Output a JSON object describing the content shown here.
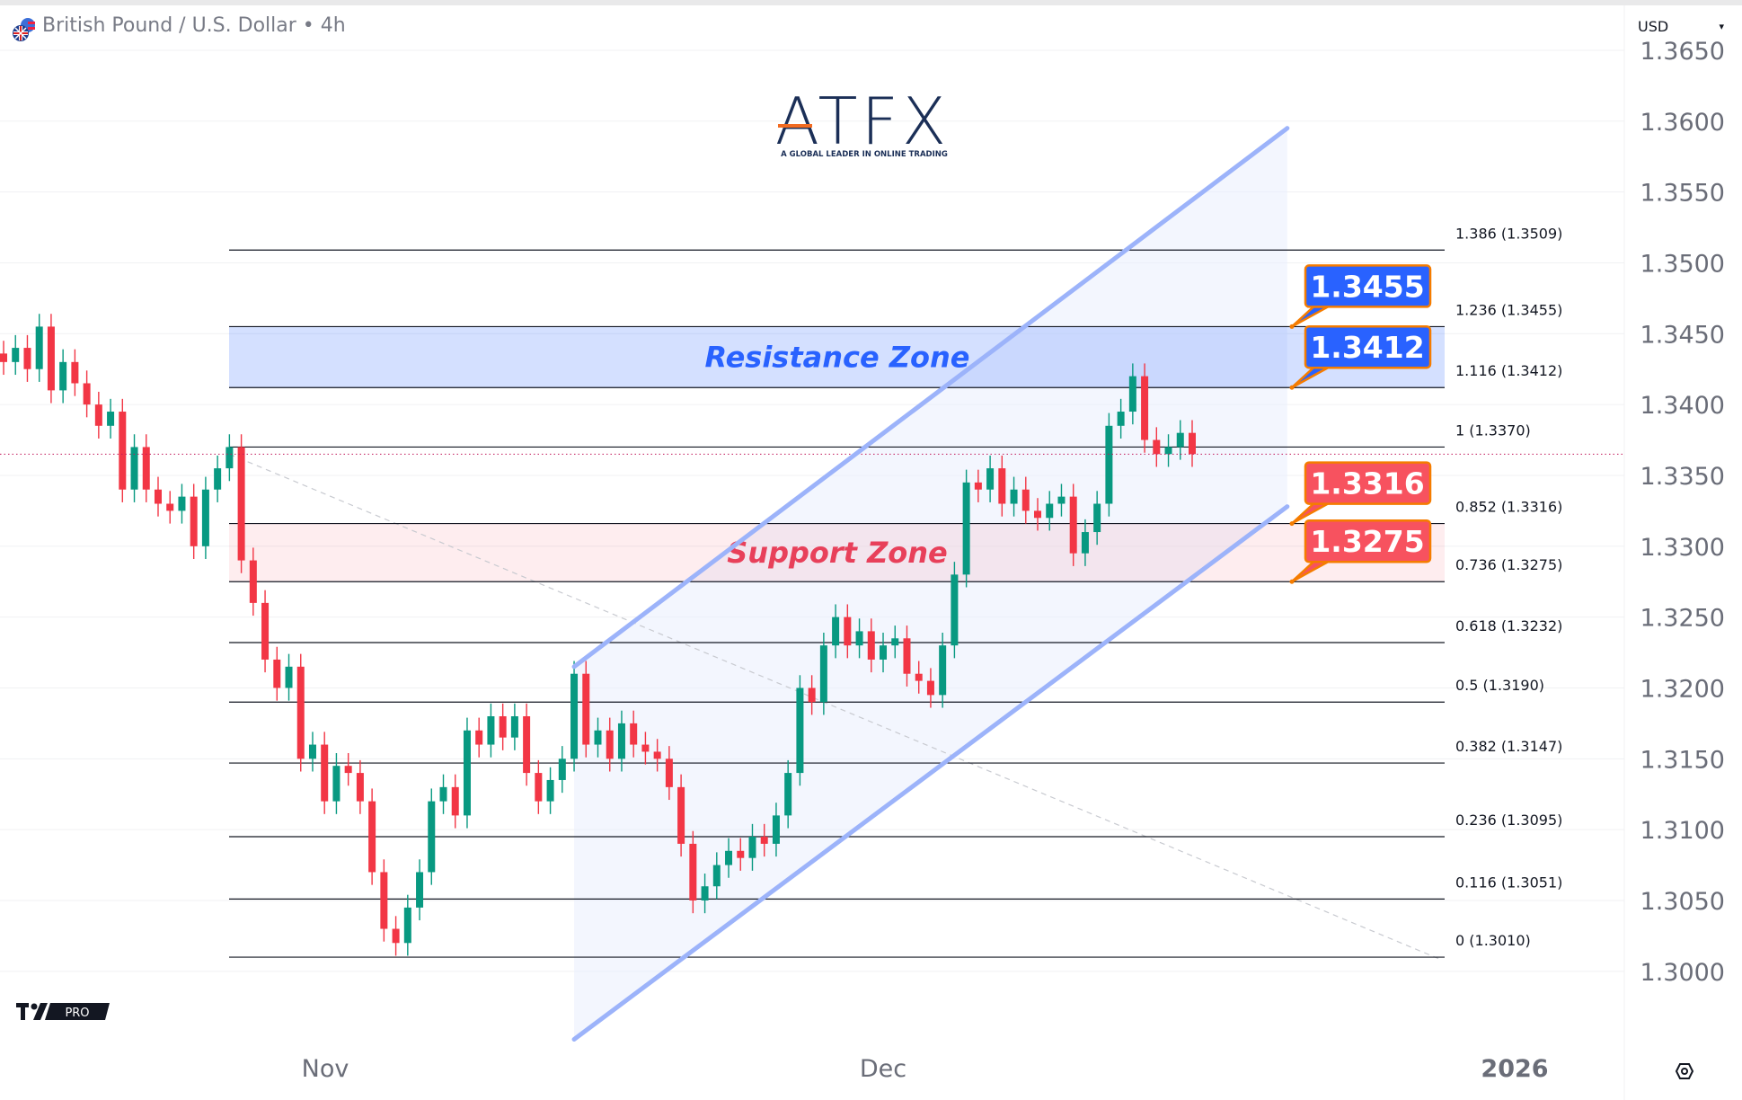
{
  "header": {
    "symbol_title": "British Pound / U.S. Dollar • 4h",
    "currency_select": "USD",
    "flag_icon": "gbp-usd-flags-icon"
  },
  "branding": {
    "logo_text": "ATFX",
    "logo_tagline": "A GLOBAL LEADER IN ONLINE TRADING",
    "tv_badge": "PRO"
  },
  "colors": {
    "up": "#089981",
    "down": "#f23645",
    "resistance": "#2962ff",
    "support": "#f7525f",
    "callout_border": "#f57c00",
    "channel": "#9cb3fa",
    "logo_navy": "#1b2f57",
    "logo_orange": "#f26b21"
  },
  "chart_data": {
    "type": "candlestick",
    "title": "",
    "ylim": [
      1.2985,
      1.3665
    ],
    "y_ticks": [
      "1.3650",
      "1.3600",
      "1.3550",
      "1.3500",
      "1.3450",
      "1.3400",
      "1.3350",
      "1.3300",
      "1.3250",
      "1.3200",
      "1.3150",
      "1.3100",
      "1.3050",
      "1.3000"
    ],
    "x_ticks": [
      "Nov",
      "Dec",
      "2026"
    ],
    "close": [
      1.343,
      1.344,
      1.3425,
      1.3455,
      1.341,
      1.343,
      1.3415,
      1.34,
      1.3385,
      1.3395,
      1.334,
      1.337,
      1.334,
      1.333,
      1.3325,
      1.3335,
      1.33,
      1.334,
      1.3355,
      1.337,
      1.329,
      1.326,
      1.322,
      1.32,
      1.3215,
      1.315,
      1.316,
      1.312,
      1.3145,
      1.314,
      1.312,
      1.307,
      1.303,
      1.302,
      1.3045,
      1.307,
      1.312,
      1.313,
      1.311,
      1.317,
      1.316,
      1.318,
      1.3165,
      1.318,
      1.314,
      1.312,
      1.3135,
      1.315,
      1.321,
      1.316,
      1.317,
      1.315,
      1.3175,
      1.316,
      1.3155,
      1.315,
      1.313,
      1.309,
      1.305,
      1.306,
      1.3075,
      1.3085,
      1.308,
      1.3095,
      1.309,
      1.311,
      1.314,
      1.32,
      1.319,
      1.323,
      1.325,
      1.323,
      1.324,
      1.322,
      1.323,
      1.3235,
      1.321,
      1.3205,
      1.3195,
      1.323,
      1.328,
      1.3345,
      1.334,
      1.3355,
      1.333,
      1.334,
      1.3325,
      1.332,
      1.333,
      1.3335,
      1.3295,
      1.331,
      1.333,
      1.3385,
      1.3395,
      1.342,
      1.3375,
      1.3365,
      1.337,
      1.338,
      1.3365
    ],
    "current_price": 1.3365,
    "fib_levels": [
      {
        "ratio": "1.386",
        "price": 1.3509,
        "label": "1.386 (1.3509)"
      },
      {
        "ratio": "1.236",
        "price": 1.3455,
        "label": "1.236 (1.3455)"
      },
      {
        "ratio": "1.116",
        "price": 1.3412,
        "label": "1.116 (1.3412)"
      },
      {
        "ratio": "1",
        "price": 1.337,
        "label": "1 (1.3370)"
      },
      {
        "ratio": "0.852",
        "price": 1.3316,
        "label": "0.852 (1.3316)"
      },
      {
        "ratio": "0.736",
        "price": 1.3275,
        "label": "0.736 (1.3275)"
      },
      {
        "ratio": "0.618",
        "price": 1.3232,
        "label": "0.618 (1.3232)"
      },
      {
        "ratio": "0.5",
        "price": 1.319,
        "label": "0.5 (1.3190)"
      },
      {
        "ratio": "0.382",
        "price": 1.3147,
        "label": "0.382 (1.3147)"
      },
      {
        "ratio": "0.236",
        "price": 1.3095,
        "label": "0.236 (1.3095)"
      },
      {
        "ratio": "0.116",
        "price": 1.3051,
        "label": "0.116 (1.3051)"
      },
      {
        "ratio": "0",
        "price": 1.301,
        "label": "0 (1.3010)"
      }
    ],
    "zones": [
      {
        "name": "Resistance Zone",
        "top": 1.3455,
        "bottom": 1.3412,
        "color": "#2962ff"
      },
      {
        "name": "Support Zone",
        "top": 1.3316,
        "bottom": 1.3275,
        "color": "#f7525f"
      }
    ],
    "callouts": [
      {
        "text": "1.3455",
        "price": 1.3455,
        "kind": "resistance"
      },
      {
        "text": "1.3412",
        "price": 1.3412,
        "kind": "resistance"
      },
      {
        "text": "1.3316",
        "price": 1.3316,
        "kind": "support"
      },
      {
        "text": "1.3275",
        "price": 1.3275,
        "kind": "support"
      }
    ],
    "channel": {
      "upper": [
        [
          48,
          1.3215
        ],
        [
          108,
          1.3595
        ]
      ],
      "lower": [
        [
          48,
          1.2952
        ],
        [
          108,
          1.3328
        ]
      ]
    },
    "trendline": [
      [
        19,
        1.3365
      ],
      [
        121,
        1.3008
      ]
    ]
  }
}
